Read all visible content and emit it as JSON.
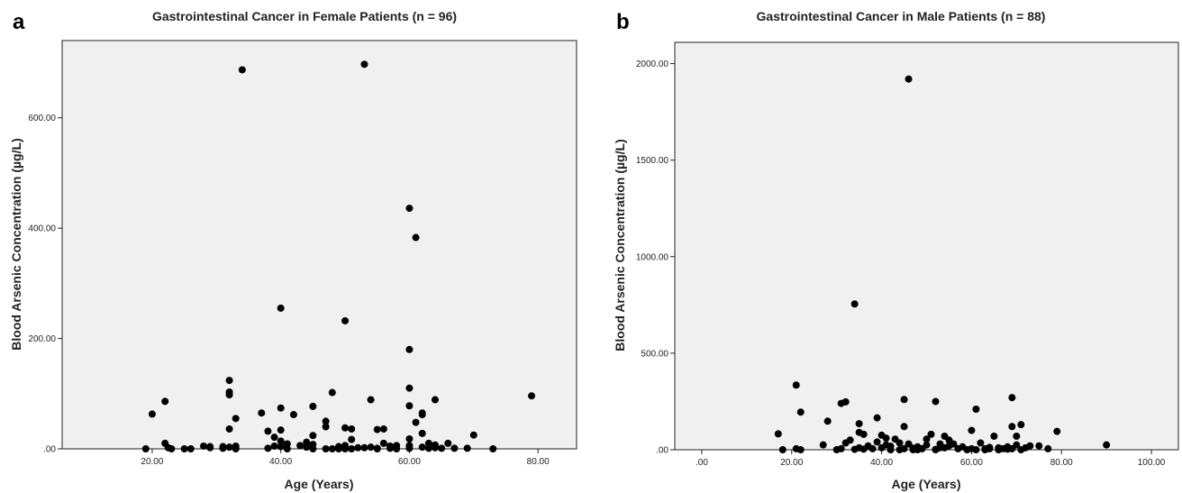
{
  "chart_data": [
    {
      "type": "scatter",
      "panel_label": "a",
      "title": "Gastrointestinal Cancer in Female Patients (n = 96)",
      "xlabel": "Age (Years)",
      "ylabel": "Blood Arsenic Concentration (µg/L)",
      "xlim": [
        6,
        86
      ],
      "ylim": [
        0,
        740
      ],
      "xticks": [
        20,
        40,
        60,
        80
      ],
      "xtick_labels": [
        "20.00",
        "40.00",
        "60.00",
        "80.00"
      ],
      "yticks": [
        0,
        200,
        400,
        600
      ],
      "ytick_labels": [
        ".00",
        "200.00",
        "400.00",
        "600.00"
      ],
      "grid": false,
      "points": [
        [
          19,
          0
        ],
        [
          20,
          63
        ],
        [
          22,
          86
        ],
        [
          22,
          10
        ],
        [
          22.5,
          2
        ],
        [
          23,
          0
        ],
        [
          25,
          0
        ],
        [
          26,
          0
        ],
        [
          28,
          5
        ],
        [
          29,
          4
        ],
        [
          29,
          2
        ],
        [
          31,
          4
        ],
        [
          31,
          1
        ],
        [
          32,
          124
        ],
        [
          32,
          103
        ],
        [
          32,
          98
        ],
        [
          32,
          36
        ],
        [
          32,
          3
        ],
        [
          33,
          55
        ],
        [
          33,
          5
        ],
        [
          33,
          1
        ],
        [
          34,
          687
        ],
        [
          37,
          65
        ],
        [
          38,
          32
        ],
        [
          39,
          21
        ],
        [
          39,
          5
        ],
        [
          40,
          255
        ],
        [
          40,
          74
        ],
        [
          40,
          34
        ],
        [
          40,
          14
        ],
        [
          40,
          4
        ],
        [
          41,
          0
        ],
        [
          42,
          62
        ],
        [
          43,
          6
        ],
        [
          44,
          12
        ],
        [
          45,
          77
        ],
        [
          45,
          24
        ],
        [
          45,
          8
        ],
        [
          45,
          0
        ],
        [
          47,
          50
        ],
        [
          47,
          40
        ],
        [
          47,
          0
        ],
        [
          48,
          102
        ],
        [
          48,
          0
        ],
        [
          49,
          0
        ],
        [
          50,
          232
        ],
        [
          50,
          38
        ],
        [
          50,
          6
        ],
        [
          51,
          36
        ],
        [
          51,
          17
        ],
        [
          51,
          0
        ],
        [
          52,
          2
        ],
        [
          53,
          697
        ],
        [
          54,
          89
        ],
        [
          54,
          3
        ],
        [
          55,
          35
        ],
        [
          55,
          1
        ],
        [
          56,
          36
        ],
        [
          56,
          10
        ],
        [
          57,
          1
        ],
        [
          58,
          0
        ],
        [
          60,
          436
        ],
        [
          60,
          180
        ],
        [
          60,
          110
        ],
        [
          60,
          78
        ],
        [
          60,
          18
        ],
        [
          60,
          6
        ],
        [
          60,
          1
        ],
        [
          61,
          383
        ],
        [
          61,
          48
        ],
        [
          62,
          65
        ],
        [
          62,
          62
        ],
        [
          62,
          28
        ],
        [
          63,
          10
        ],
        [
          63,
          1
        ],
        [
          64,
          89
        ],
        [
          64,
          7
        ],
        [
          65,
          1
        ],
        [
          66,
          10
        ],
        [
          67,
          1
        ],
        [
          69,
          1
        ],
        [
          70,
          25
        ],
        [
          73,
          0
        ],
        [
          79,
          96
        ],
        [
          50,
          0
        ],
        [
          58,
          6
        ],
        [
          64,
          2
        ],
        [
          44,
          3
        ],
        [
          57,
          5
        ],
        [
          55,
          0
        ],
        [
          33,
          0
        ],
        [
          41,
          9
        ],
        [
          53,
          2
        ],
        [
          62,
          3
        ],
        [
          38,
          1
        ],
        [
          49,
          4
        ]
      ]
    },
    {
      "type": "scatter",
      "panel_label": "b",
      "title": "Gastrointestinal Cancer in Male Patients (n = 88)",
      "xlabel": "Age (Years)",
      "ylabel": "Blood Arsenic Concentration (µg/L)",
      "xlim": [
        -6,
        106
      ],
      "ylim": [
        0,
        2110
      ],
      "xticks": [
        0,
        20,
        40,
        60,
        80,
        100
      ],
      "xtick_labels": [
        ".00",
        "20.00",
        "40.00",
        "60.00",
        "80.00",
        "100.00"
      ],
      "yticks": [
        0,
        500,
        1000,
        1500,
        2000
      ],
      "ytick_labels": [
        ".00",
        "500.00",
        "1000.00",
        "1500.00",
        "2000.00"
      ],
      "grid": false,
      "points": [
        [
          17,
          82
        ],
        [
          18,
          0
        ],
        [
          21,
          335
        ],
        [
          21,
          5
        ],
        [
          22,
          195
        ],
        [
          22,
          0
        ],
        [
          27,
          25
        ],
        [
          28,
          148
        ],
        [
          30,
          0
        ],
        [
          31,
          5
        ],
        [
          31,
          240
        ],
        [
          32,
          248
        ],
        [
          32,
          35
        ],
        [
          33,
          50
        ],
        [
          34,
          755
        ],
        [
          34,
          2
        ],
        [
          35,
          135
        ],
        [
          35,
          90
        ],
        [
          35,
          10
        ],
        [
          36,
          80
        ],
        [
          37,
          20
        ],
        [
          39,
          165
        ],
        [
          39,
          40
        ],
        [
          40,
          75
        ],
        [
          40,
          10
        ],
        [
          41,
          60
        ],
        [
          41,
          25
        ],
        [
          42,
          0
        ],
        [
          43,
          55
        ],
        [
          44,
          35
        ],
        [
          45,
          260
        ],
        [
          45,
          120
        ],
        [
          45,
          5
        ],
        [
          46,
          1920
        ],
        [
          46,
          30
        ],
        [
          47,
          0
        ],
        [
          48,
          15
        ],
        [
          49,
          5
        ],
        [
          50,
          55
        ],
        [
          50,
          25
        ],
        [
          51,
          80
        ],
        [
          52,
          250
        ],
        [
          52,
          0
        ],
        [
          53,
          30
        ],
        [
          54,
          70
        ],
        [
          54,
          10
        ],
        [
          55,
          50
        ],
        [
          55,
          20
        ],
        [
          56,
          30
        ],
        [
          57,
          5
        ],
        [
          60,
          100
        ],
        [
          60,
          5
        ],
        [
          61,
          210
        ],
        [
          61,
          0
        ],
        [
          62,
          35
        ],
        [
          63,
          0
        ],
        [
          64,
          5
        ],
        [
          65,
          70
        ],
        [
          66,
          10
        ],
        [
          67,
          5
        ],
        [
          68,
          15
        ],
        [
          69,
          270
        ],
        [
          69,
          120
        ],
        [
          69,
          5
        ],
        [
          70,
          70
        ],
        [
          70,
          25
        ],
        [
          71,
          130
        ],
        [
          72,
          10
        ],
        [
          73,
          20
        ],
        [
          75,
          20
        ],
        [
          77,
          5
        ],
        [
          79,
          95
        ],
        [
          90,
          25
        ],
        [
          48,
          0
        ],
        [
          53,
          10
        ],
        [
          58,
          15
        ],
        [
          63,
          5
        ],
        [
          66,
          0
        ],
        [
          38,
          5
        ],
        [
          44,
          0
        ],
        [
          36,
          3
        ],
        [
          47,
          8
        ],
        [
          52,
          2
        ],
        [
          59,
          0
        ],
        [
          64,
          12
        ],
        [
          68,
          3
        ],
        [
          71,
          0
        ],
        [
          42,
          18
        ]
      ]
    }
  ]
}
